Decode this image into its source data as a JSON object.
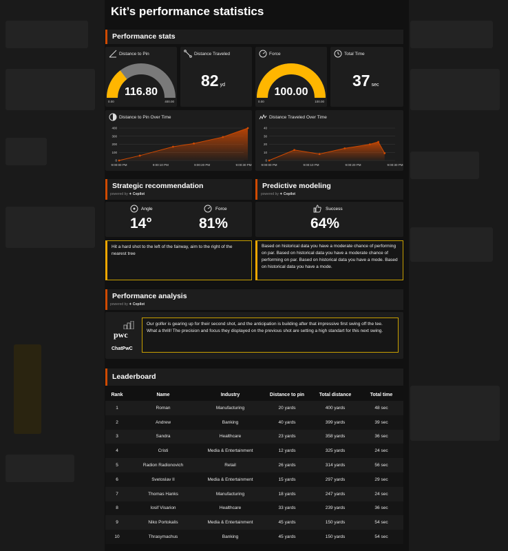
{
  "page": {
    "title": "Kit’s performance statistics"
  },
  "performance_stats": {
    "heading": "Performance stats",
    "distance_to_pin": {
      "label": "Distance to Pin",
      "value": "116.80",
      "min": "0.00",
      "max": "400.00",
      "fraction": 0.292
    },
    "distance_traveled": {
      "label": "Distance Traveled",
      "value": "82",
      "unit": "yd"
    },
    "force": {
      "label": "Force",
      "value": "100.00",
      "min": "0.00",
      "max": "100.00",
      "fraction": 1.0
    },
    "total_time": {
      "label": "Total Time",
      "value": "37",
      "unit": "sec"
    }
  },
  "chart_data": [
    {
      "type": "area",
      "title": "Distance to Pin Over Time",
      "x_ticks": [
        "9:00:00 PM",
        "9:00:10 PM",
        "9:00:20 PM",
        "9:00:30 PM"
      ],
      "y_ticks": [
        "400",
        "300",
        "200",
        "100",
        "0"
      ],
      "ylim": [
        0,
        400
      ],
      "xlim": [
        0,
        30
      ],
      "x": [
        0,
        5,
        13,
        18,
        25,
        31
      ],
      "values": [
        0,
        60,
        170,
        210,
        290,
        400
      ],
      "color": "#d04a02"
    },
    {
      "type": "area",
      "title": "Distance Traveled Over Time",
      "x_ticks": [
        "9:00:00 PM",
        "9:00:10 PM",
        "9:00:20 PM",
        "9:00:30 PM"
      ],
      "y_ticks": [
        "40",
        "30",
        "20",
        "10",
        "0"
      ],
      "ylim": [
        0,
        40
      ],
      "xlim": [
        0,
        30
      ],
      "x": [
        0,
        6,
        12,
        18,
        24,
        26,
        27.5
      ],
      "values": [
        0,
        13,
        8,
        15,
        20,
        23,
        9
      ],
      "color": "#d04a02"
    }
  ],
  "strategic": {
    "heading": "Strategic recommendation",
    "powered_prefix": "powered by",
    "powered_brand": "Copilot",
    "angle_label": "Angle",
    "angle_value": "14°",
    "force_label": "Force",
    "force_value": "81%",
    "text": "Hit a hard shot to the left of the fairway, aim to the right of the nearest tree"
  },
  "predictive": {
    "heading": "Predictive modeling",
    "powered_prefix": "powered by",
    "powered_brand": "Copilot",
    "success_label": "Success",
    "success_value": "64%",
    "text": "Based on historical data you have a moderate chance of performing on par. Based on historical data you have a moderate chance of performing on par. Based on historical data you have a mode. Based on historical data you have a mode."
  },
  "analysis": {
    "heading": "Performance analysis",
    "powered_prefix": "powered by",
    "powered_brand": "Copilot",
    "logo_text": "pwc",
    "logo_label": "ChatPwC",
    "text": "Our golfer is gearing up for their second shot, and the anticipation is building after that impressive first swing off the tee. What a thrill! The precision and focus they displayed on the previous shot are setting a high standart for this next swing."
  },
  "leaderboard": {
    "heading": "Leaderboard",
    "columns": [
      "Rank",
      "Name",
      "Industry",
      "Distance to pin",
      "Total distance",
      "Total time"
    ],
    "rows": [
      [
        "1",
        "Roman",
        "Manufacturing",
        "20 yards",
        "400 yards",
        "48 sec"
      ],
      [
        "2",
        "Andrew",
        "Banking",
        "40 yards",
        "399 yards",
        "39 sec"
      ],
      [
        "3",
        "Sandra",
        "Healthcare",
        "23 yards",
        "358 yards",
        "36 sec"
      ],
      [
        "4",
        "Cristi",
        "Media & Entertainment",
        "12 yards",
        "325 yards",
        "24 sec"
      ],
      [
        "5",
        "Radion Radionovich",
        "Retail",
        "26 yards",
        "314 yards",
        "56 sec"
      ],
      [
        "6",
        "Svetoslav II",
        "Media & Entertainment",
        "15 yards",
        "297 yards",
        "29 sec"
      ],
      [
        "7",
        "Thomas Hanks",
        "Manufacturing",
        "18 yards",
        "247 yards",
        "24 sec"
      ],
      [
        "8",
        "Iosif Visarion",
        "Healthcare",
        "33 yards",
        "239 yards",
        "36 sec"
      ],
      [
        "9",
        "Niko Portokalis",
        "Media & Entertainment",
        "45 yards",
        "150 yards",
        "54 sec"
      ],
      [
        "10",
        "Thrasymachus",
        "Banking",
        "45 yards",
        "150 yards",
        "54 sec"
      ]
    ]
  },
  "colors": {
    "accent": "#d04a02",
    "gauge": "#ffb600",
    "gauge_track": "#7a7a7a",
    "highlight": "#f5a800"
  }
}
